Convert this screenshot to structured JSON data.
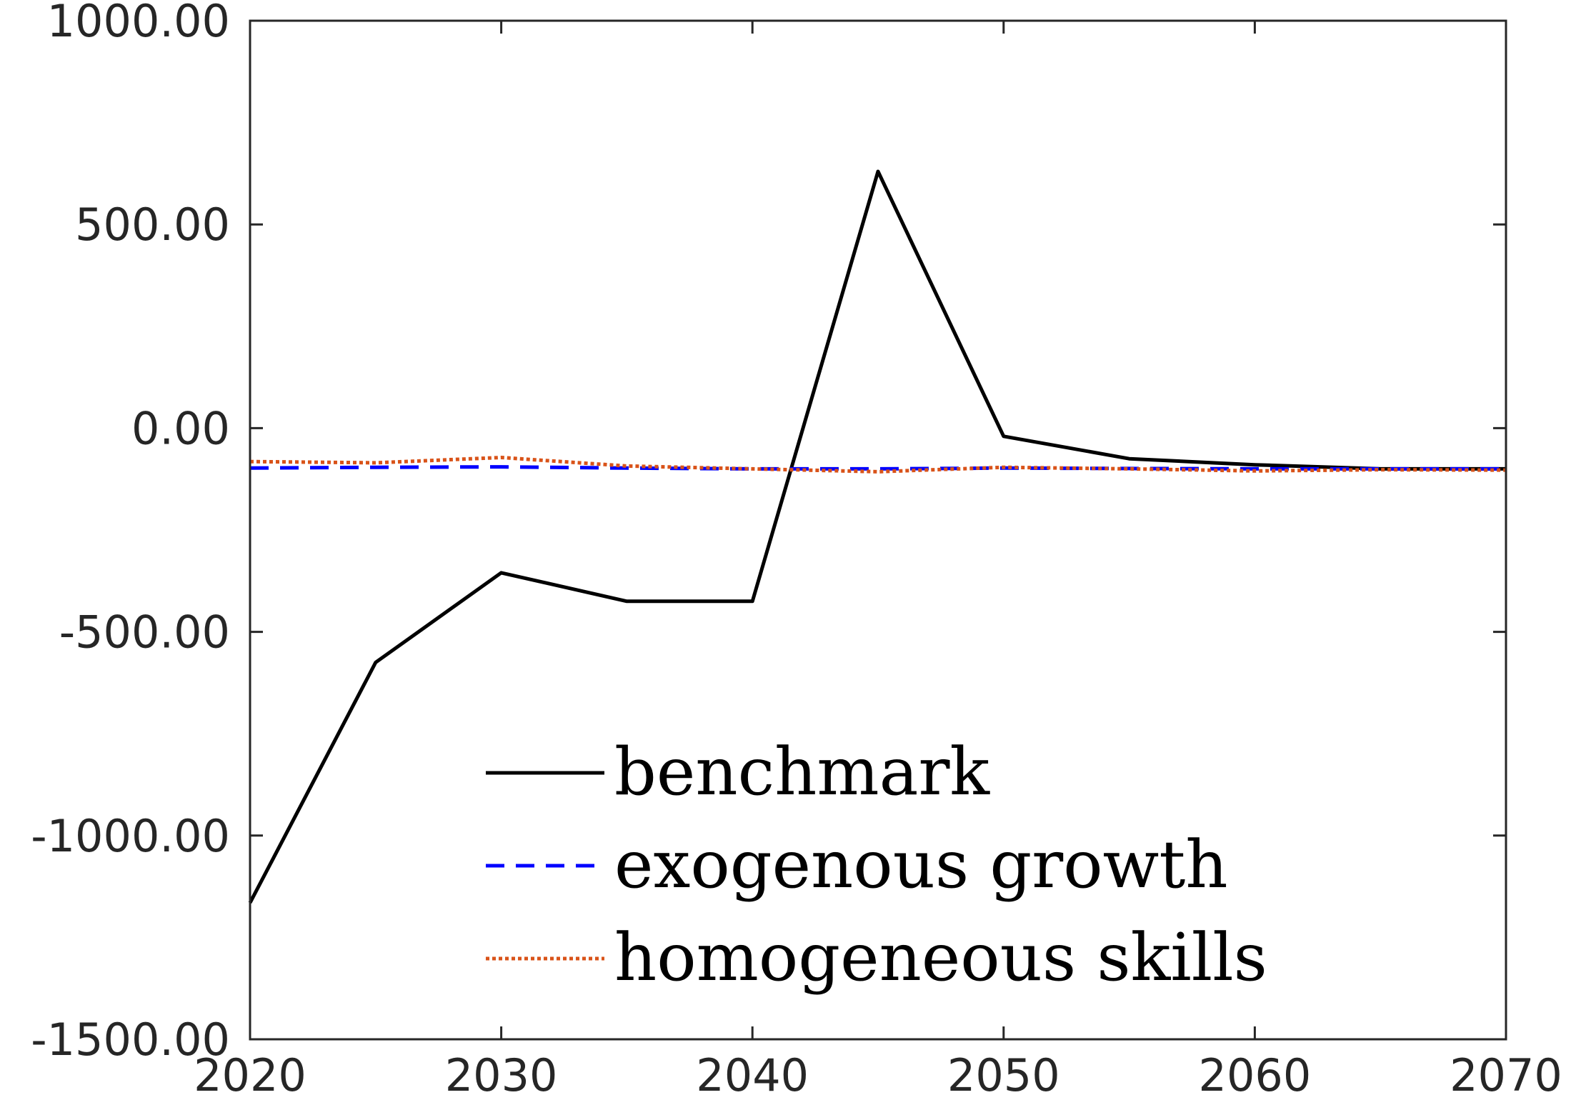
{
  "chart_data": {
    "type": "line",
    "title": "",
    "xlabel": "",
    "ylabel": "",
    "xlim": [
      2020,
      2070
    ],
    "ylim": [
      -1500,
      1000
    ],
    "x_ticks": [
      2020,
      2030,
      2040,
      2050,
      2060,
      2070
    ],
    "x_tick_labels": [
      "2020",
      "2030",
      "2040",
      "2050",
      "2060",
      "2070"
    ],
    "y_ticks": [
      1000,
      500,
      0,
      -500,
      -1000,
      -1500
    ],
    "y_tick_labels": [
      "1000.00",
      "500.00",
      "0.00",
      "-500.00",
      "-1000.00",
      "-1500.00"
    ],
    "grid": false,
    "legend_position": "bottom-center",
    "series": [
      {
        "name": "benchmark",
        "color": "#000000",
        "style": "solid",
        "x": [
          2020,
          2025,
          2030,
          2035,
          2040,
          2045,
          2050,
          2055,
          2060,
          2065,
          2070
        ],
        "y": [
          -1165,
          -575,
          -355,
          -425,
          -425,
          630,
          -20,
          -75,
          -90,
          -100,
          -100
        ]
      },
      {
        "name": "exogenous growth",
        "color": "#0000ff",
        "style": "dashed",
        "x": [
          2020,
          2025,
          2030,
          2035,
          2040,
          2045,
          2050,
          2055,
          2060,
          2065,
          2070
        ],
        "y": [
          -98,
          -96,
          -95,
          -98,
          -100,
          -100,
          -98,
          -99,
          -100,
          -100,
          -100
        ]
      },
      {
        "name": "homogeneous skills",
        "color": "#d95319",
        "style": "dotted",
        "x": [
          2020,
          2025,
          2030,
          2035,
          2040,
          2045,
          2050,
          2055,
          2060,
          2065,
          2070
        ],
        "y": [
          -82,
          -85,
          -72,
          -93,
          -100,
          -107,
          -96,
          -100,
          -105,
          -102,
          -103
        ]
      }
    ]
  }
}
